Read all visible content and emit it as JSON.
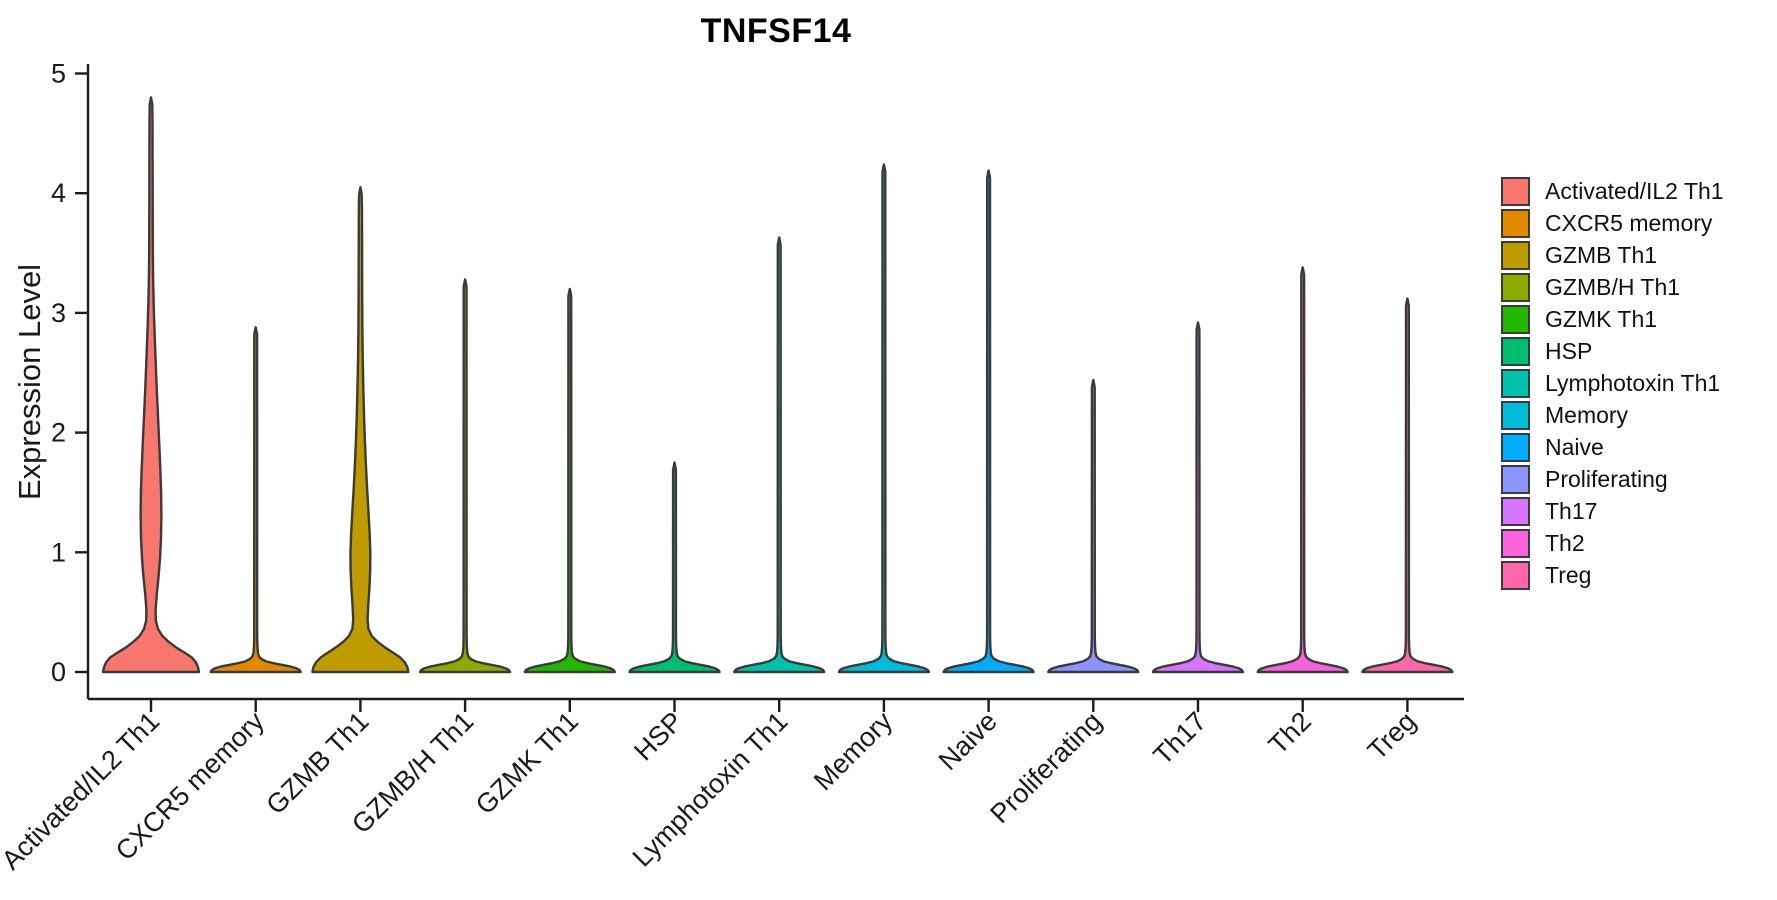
{
  "chart_data": {
    "type": "violin",
    "title": "TNFSF14",
    "xlabel": "",
    "ylabel": "Expression Level",
    "ylim": [
      0,
      5
    ],
    "yticks": [
      0,
      1,
      2,
      3,
      4,
      5
    ],
    "grid": false,
    "legend_position": "right",
    "categories": [
      "Activated/IL2 Th1",
      "CXCR5 memory",
      "GZMB Th1",
      "GZMB/H Th1",
      "GZMK Th1",
      "HSP",
      "Lymphotoxin Th1",
      "Memory",
      "Naive",
      "Proliferating",
      "Th17",
      "Th2",
      "Treg"
    ],
    "series": [
      {
        "name": "Activated/IL2 Th1",
        "color": "#F8766D",
        "max_expression": 4.8,
        "profile": [
          [
            0,
            48
          ],
          [
            0.04,
            47
          ],
          [
            0.08,
            45
          ],
          [
            0.12,
            41
          ],
          [
            0.16,
            34
          ],
          [
            0.2,
            26
          ],
          [
            0.25,
            18
          ],
          [
            0.3,
            11.5
          ],
          [
            0.36,
            7
          ],
          [
            0.43,
            4.8
          ],
          [
            0.52,
            4.6
          ],
          [
            0.65,
            5.8
          ],
          [
            0.8,
            7.6
          ],
          [
            0.95,
            9.0
          ],
          [
            1.1,
            9.9
          ],
          [
            1.3,
            10.4
          ],
          [
            1.5,
            10.1
          ],
          [
            1.7,
            9.3
          ],
          [
            1.9,
            8.3
          ],
          [
            2.1,
            7.2
          ],
          [
            2.3,
            6.1
          ],
          [
            2.5,
            5.1
          ],
          [
            2.7,
            4.2
          ],
          [
            2.9,
            3.3
          ],
          [
            3.1,
            2.6
          ],
          [
            3.3,
            2.1
          ],
          [
            3.55,
            1.8
          ],
          [
            3.9,
            1.7
          ],
          [
            4.3,
            1.6
          ],
          [
            4.6,
            1.5
          ],
          [
            4.74,
            1.3
          ],
          [
            4.8,
            0
          ]
        ]
      },
      {
        "name": "CXCR5 memory",
        "color": "#E18A00",
        "max_expression": 2.88
      },
      {
        "name": "GZMB Th1",
        "color": "#BE9C00",
        "max_expression": 4.05,
        "profile": [
          [
            0,
            48
          ],
          [
            0.04,
            47
          ],
          [
            0.08,
            44.5
          ],
          [
            0.12,
            40
          ],
          [
            0.16,
            33
          ],
          [
            0.2,
            25.5
          ],
          [
            0.25,
            17.5
          ],
          [
            0.3,
            11.5
          ],
          [
            0.36,
            8.0
          ],
          [
            0.44,
            7.2
          ],
          [
            0.55,
            7.8
          ],
          [
            0.7,
            9.0
          ],
          [
            0.85,
            9.8
          ],
          [
            1.0,
            9.9
          ],
          [
            1.15,
            9.3
          ],
          [
            1.35,
            8.0
          ],
          [
            1.55,
            6.6
          ],
          [
            1.75,
            5.4
          ],
          [
            1.95,
            4.4
          ],
          [
            2.15,
            3.6
          ],
          [
            2.35,
            3.0
          ],
          [
            2.6,
            2.4
          ],
          [
            2.85,
            2.0
          ],
          [
            3.15,
            1.8
          ],
          [
            3.5,
            1.7
          ],
          [
            3.85,
            1.6
          ],
          [
            3.99,
            1.3
          ],
          [
            4.05,
            0
          ]
        ]
      },
      {
        "name": "GZMB/H Th1",
        "color": "#8CAB00",
        "max_expression": 3.28
      },
      {
        "name": "GZMK Th1",
        "color": "#24B700",
        "max_expression": 3.2
      },
      {
        "name": "HSP",
        "color": "#00BE70",
        "max_expression": 1.75
      },
      {
        "name": "Lymphotoxin Th1",
        "color": "#00C1AB",
        "max_expression": 3.63
      },
      {
        "name": "Memory",
        "color": "#00BBDA",
        "max_expression": 4.24
      },
      {
        "name": "Naive",
        "color": "#00ACFC",
        "max_expression": 4.19
      },
      {
        "name": "Proliferating",
        "color": "#8B93FF",
        "max_expression": 2.44
      },
      {
        "name": "Th17",
        "color": "#D575FE",
        "max_expression": 2.92
      },
      {
        "name": "Th2",
        "color": "#F962DD",
        "max_expression": 3.38
      },
      {
        "name": "Treg",
        "color": "#FF65AC",
        "max_expression": 3.12
      }
    ],
    "spike_base_profile": [
      [
        0,
        45
      ],
      [
        0.015,
        44
      ],
      [
        0.03,
        41
      ],
      [
        0.045,
        35
      ],
      [
        0.06,
        26
      ],
      [
        0.075,
        17
      ],
      [
        0.09,
        10
      ],
      [
        0.11,
        5.5
      ],
      [
        0.13,
        3.2
      ],
      [
        0.16,
        2.2
      ],
      [
        0.22,
        1.7
      ],
      [
        0.3,
        1.5
      ]
    ],
    "colors": {
      "violin_outline": "#3A3A3A",
      "axis": "#1c1c1c",
      "tick_text": "#1a1a1a",
      "background": "#ffffff"
    }
  }
}
